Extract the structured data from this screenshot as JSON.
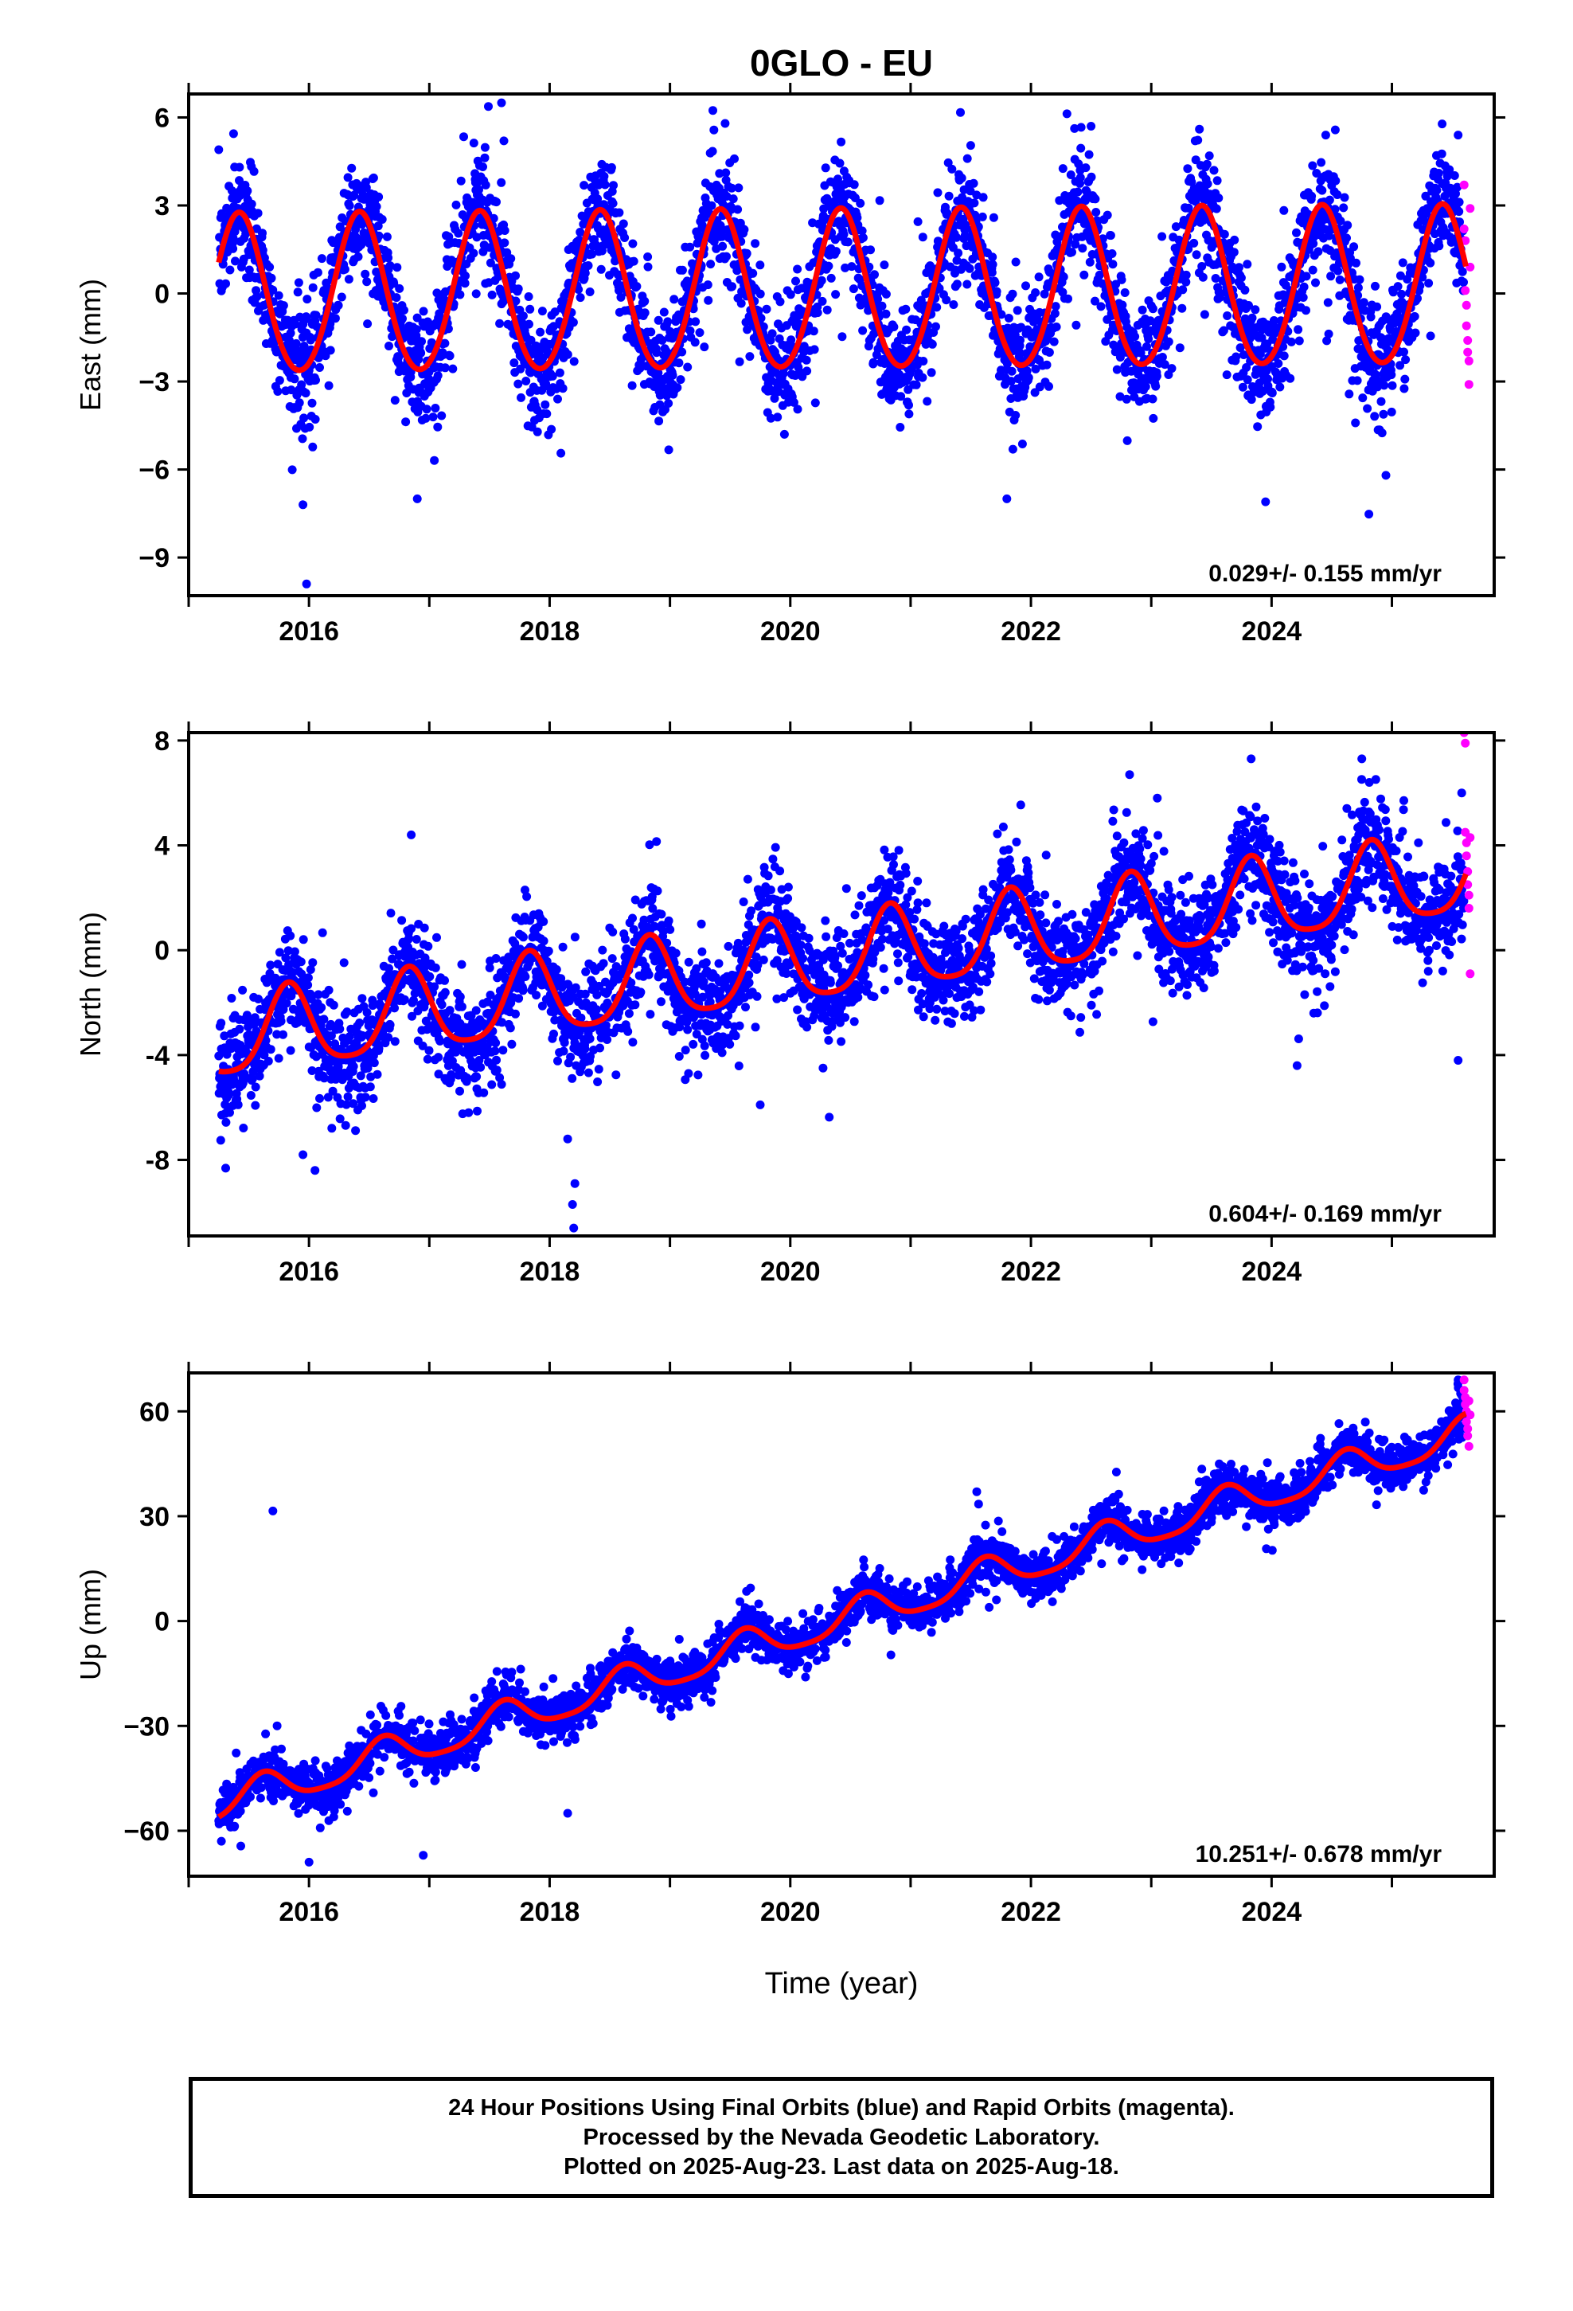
{
  "chart_data": {
    "title": "0GLO - EU",
    "type": "scatter",
    "xlabel": "Time (year)",
    "xlim": [
      2015.0,
      2025.85
    ],
    "xticks": [
      2016,
      2018,
      2020,
      2022,
      2024
    ],
    "colors": {
      "final": "#0000ff",
      "rapid": "#ff00ff",
      "model": "#ff0000",
      "frame": "#000000"
    },
    "panels": [
      {
        "ylabel": "East (mm)",
        "ylim": [
          -10.3,
          6.8
        ],
        "yticks": [
          6,
          3,
          0,
          -3,
          -6,
          -9
        ],
        "ytick_labels": [
          "6",
          "3",
          "0",
          "−3",
          "−6",
          "−9"
        ],
        "rate": "0.029+/- 0.155 mm/yr",
        "model": {
          "t0": 2020.0,
          "offset": 0.0,
          "slope": 0.029,
          "amp": 2.7,
          "peak": 0.42,
          "semi_amp": 0.2,
          "t_start": 2015.25,
          "t_end": 2025.62
        },
        "scatter_sd": 0.95,
        "outliers_final": [
          [
            2015.25,
            4.9
          ],
          [
            2015.98,
            -9.9
          ],
          [
            2015.95,
            -7.2
          ],
          [
            2017.6,
            6.5
          ],
          [
            2017.62,
            5.2
          ],
          [
            2016.9,
            -7.0
          ],
          [
            2021.8,
            -7.0
          ],
          [
            2022.5,
            5.7
          ],
          [
            2023.4,
            5.6
          ],
          [
            2023.95,
            -7.1
          ],
          [
            2024.45,
            5.4
          ],
          [
            2024.95,
            -6.2
          ],
          [
            2025.55,
            5.4
          ]
        ],
        "rapid": [
          [
            2025.6,
            3.7
          ],
          [
            2025.6,
            2.2
          ],
          [
            2025.61,
            1.8
          ],
          [
            2025.61,
            0.1
          ],
          [
            2025.62,
            -0.4
          ],
          [
            2025.62,
            -1.1
          ],
          [
            2025.63,
            -1.6
          ],
          [
            2025.63,
            -2.0
          ],
          [
            2025.64,
            -2.3
          ],
          [
            2025.64,
            -3.1
          ],
          [
            2025.65,
            0.9
          ],
          [
            2025.65,
            2.9
          ]
        ]
      },
      {
        "ylabel": "North (mm)",
        "ylim": [
          -10.9,
          8.3
        ],
        "yticks": [
          8,
          4,
          0,
          -4,
          -8
        ],
        "ytick_labels": [
          "8",
          "4",
          "0",
          "-4",
          "-8"
        ],
        "rate": "0.604+/- 0.169 mm/yr",
        "model": {
          "t0": 2020.0,
          "offset": -0.55,
          "slope": 0.604,
          "amp": 1.55,
          "peak": 0.83,
          "semi_amp": 0.3,
          "t_start": 2015.25,
          "t_end": 2025.62
        },
        "scatter_sd": 0.95,
        "outliers_final": [
          [
            2018.2,
            -10.6
          ],
          [
            2018.19,
            -9.7
          ],
          [
            2018.21,
            -8.9
          ],
          [
            2018.15,
            -7.2
          ],
          [
            2016.05,
            -8.4
          ],
          [
            2015.95,
            -7.8
          ],
          [
            2016.85,
            4.4
          ],
          [
            2019.75,
            -5.9
          ],
          [
            2022.82,
            6.7
          ],
          [
            2023.83,
            7.3
          ],
          [
            2024.35,
            -2.4
          ],
          [
            2024.75,
            7.3
          ],
          [
            2025.55,
            -4.2
          ],
          [
            2025.58,
            6.0
          ]
        ],
        "rapid": [
          [
            2025.6,
            8.3
          ],
          [
            2025.61,
            7.9
          ],
          [
            2025.61,
            4.5
          ],
          [
            2025.62,
            4.1
          ],
          [
            2025.62,
            3.6
          ],
          [
            2025.63,
            3.0
          ],
          [
            2025.63,
            2.5
          ],
          [
            2025.64,
            2.1
          ],
          [
            2025.64,
            1.6
          ],
          [
            2025.65,
            -0.9
          ],
          [
            2025.65,
            4.3
          ]
        ]
      },
      {
        "ylabel": "Up (mm)",
        "ylim": [
          -73.0,
          71.0
        ],
        "yticks": [
          60,
          30,
          0,
          -30,
          -60
        ],
        "ytick_labels": [
          "60",
          "30",
          "0",
          "−30",
          "−60"
        ],
        "rate": "10.251+/- 0.678 mm/yr",
        "model": {
          "t0": 2020.0,
          "offset": -4.0,
          "slope": 10.251,
          "amp": 4.8,
          "peak": 0.62,
          "semi_amp": 1.0,
          "t_start": 2015.25,
          "t_end": 2025.62
        },
        "scatter_sd": 3.2,
        "outliers_final": [
          [
            2015.7,
            31.5
          ],
          [
            2016.0,
            -69.0
          ],
          [
            2016.95,
            -67.0
          ],
          [
            2016.75,
            -27.0
          ],
          [
            2018.15,
            -55.0
          ],
          [
            2021.55,
            37.0
          ],
          [
            2025.55,
            69.0
          ]
        ],
        "rapid": [
          [
            2025.6,
            69.0
          ],
          [
            2025.6,
            66.0
          ],
          [
            2025.61,
            64.0
          ],
          [
            2025.61,
            62.0
          ],
          [
            2025.62,
            60.0
          ],
          [
            2025.62,
            57.0
          ],
          [
            2025.63,
            55.0
          ],
          [
            2025.63,
            53.0
          ],
          [
            2025.64,
            50.0
          ],
          [
            2025.64,
            63.0
          ],
          [
            2025.65,
            59.0
          ]
        ]
      }
    ]
  },
  "caption": {
    "line1": "24 Hour Positions Using Final Orbits (blue) and Rapid Orbits (magenta).",
    "line2": "Processed by the Nevada Geodetic Laboratory.",
    "line3": "Plotted on 2025-Aug-23. Last data on 2025-Aug-18."
  }
}
